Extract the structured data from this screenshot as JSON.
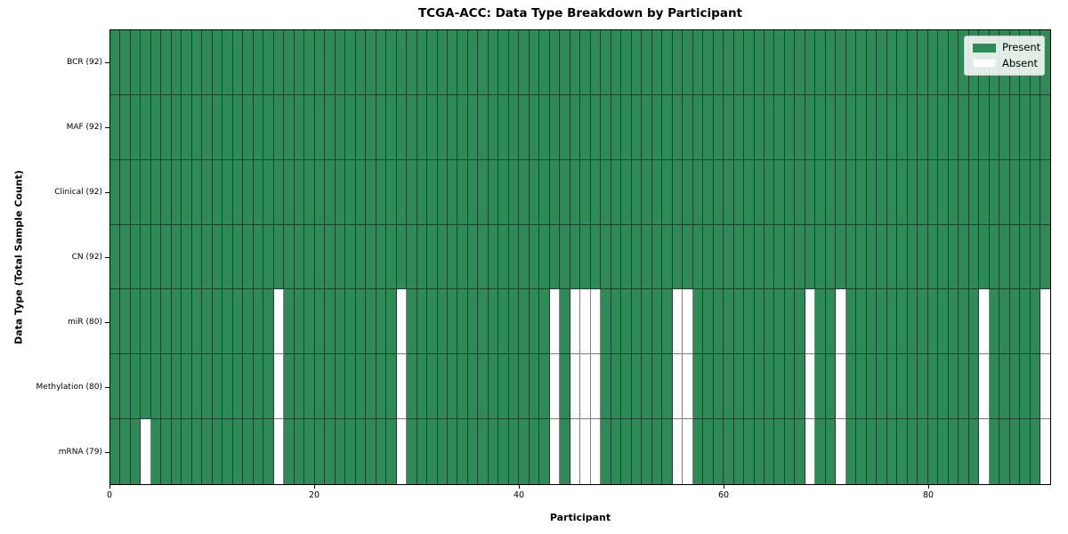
{
  "figure": {
    "title": "TCGA-ACC: Data Type Breakdown by Participant",
    "xlabel": "Participant",
    "ylabel": "Data Type (Total Sample Count)"
  },
  "legend": {
    "position": "upper right",
    "items": [
      {
        "label": "Present",
        "color": "#2e8b57"
      },
      {
        "label": "Absent",
        "color": "#ffffff"
      }
    ]
  },
  "colors": {
    "present": "#2e8b57",
    "absent": "#ffffff",
    "cell_edge": "rgba(0,0,0,0.5)",
    "frame": "#000000"
  },
  "chart_data": {
    "type": "heatmap",
    "title": "TCGA-ACC: Data Type Breakdown by Participant",
    "xlabel": "Participant",
    "ylabel": "Data Type (Total Sample Count)",
    "n_participants": 92,
    "x_axis": {
      "min": 0,
      "max": 92,
      "tick_values": [
        0,
        20,
        40,
        60,
        80
      ]
    },
    "grid": "cell-edges",
    "legend_position": "upper right",
    "rows": [
      {
        "label": "BCR (92)",
        "data_type": "BCR",
        "total_samples": 92,
        "absent_participants": []
      },
      {
        "label": "MAF (92)",
        "data_type": "MAF",
        "total_samples": 92,
        "absent_participants": []
      },
      {
        "label": "Clinical (92)",
        "data_type": "Clinical",
        "total_samples": 92,
        "absent_participants": []
      },
      {
        "label": "CN (92)",
        "data_type": "CN",
        "total_samples": 92,
        "absent_participants": []
      },
      {
        "label": "miR (80)",
        "data_type": "miR",
        "total_samples": 80,
        "absent_participants": [
          16,
          28,
          43,
          45,
          46,
          47,
          55,
          56,
          68,
          71,
          85,
          91
        ]
      },
      {
        "label": "Methylation (80)",
        "data_type": "Methylation",
        "total_samples": 80,
        "absent_participants": [
          16,
          28,
          43,
          45,
          46,
          47,
          55,
          56,
          68,
          71,
          85,
          91
        ]
      },
      {
        "label": "mRNA (79)",
        "data_type": "mRNA",
        "total_samples": 79,
        "absent_participants": [
          3,
          16,
          28,
          43,
          45,
          46,
          47,
          55,
          56,
          68,
          71,
          85,
          91
        ]
      }
    ]
  }
}
